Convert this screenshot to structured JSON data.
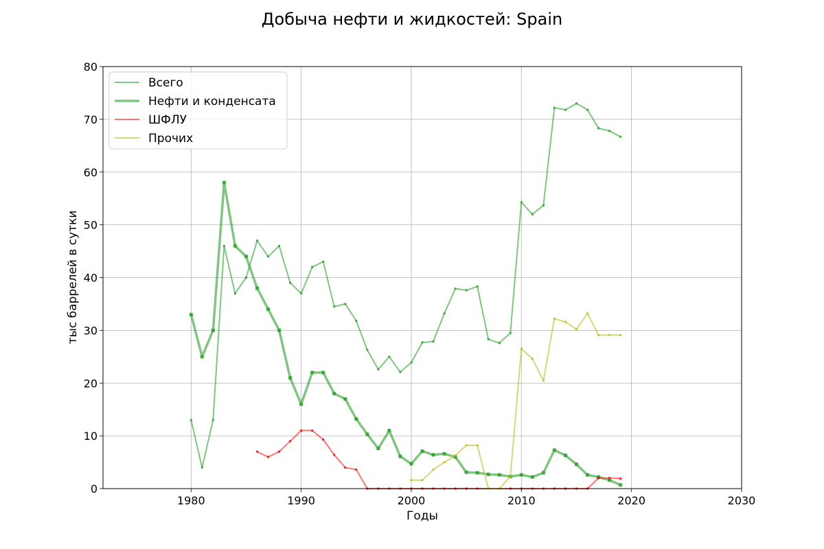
{
  "chart_data": {
    "type": "line",
    "title": "Добыча нефти и жидкостей: Spain",
    "xlabel": "Годы",
    "ylabel": "тыс баррелей в сутки",
    "xlim": [
      1972,
      2030
    ],
    "ylim": [
      0,
      80
    ],
    "xticks": [
      1980,
      1990,
      2000,
      2010,
      2020,
      2030
    ],
    "yticks": [
      0,
      10,
      20,
      30,
      40,
      50,
      60,
      70,
      80
    ],
    "grid": true,
    "legend_position": "top-left",
    "series": [
      {
        "name": "Всего",
        "color": "#2ca02c",
        "x": [
          1980,
          1981,
          1982,
          1983,
          1984,
          1985,
          1986,
          1987,
          1988,
          1989,
          1990,
          1991,
          1992,
          1993,
          1994,
          1995,
          1996,
          1997,
          1998,
          1999,
          2000,
          2001,
          2002,
          2003,
          2004,
          2005,
          2006,
          2007,
          2008,
          2009,
          2010,
          2011,
          2012,
          2013,
          2014,
          2015,
          2016,
          2017,
          2018,
          2019
        ],
        "y": [
          13,
          4,
          13,
          46,
          37,
          40,
          47,
          44,
          46,
          39,
          37,
          42,
          43,
          34.5,
          35,
          31.8,
          26.3,
          22.6,
          25,
          22.1,
          23.9,
          27.7,
          27.9,
          33.2,
          37.9,
          37.6,
          38.3,
          28.3,
          27.6,
          29.5,
          54.3,
          52,
          53.7,
          72.2,
          71.8,
          73,
          71.8,
          68.3,
          67.8,
          66.7
        ]
      },
      {
        "name": "Нефти и конденсата",
        "color": "#2ca02c",
        "x": [
          1980,
          1981,
          1982,
          1983,
          1984,
          1985,
          1986,
          1987,
          1988,
          1989,
          1990,
          1991,
          1992,
          1993,
          1994,
          1995,
          1996,
          1997,
          1998,
          1999,
          2000,
          2001,
          2002,
          2003,
          2004,
          2005,
          2006,
          2007,
          2008,
          2009,
          2010,
          2011,
          2012,
          2013,
          2014,
          2015,
          2016,
          2017,
          2018,
          2019
        ],
        "y": [
          33,
          25,
          30,
          58,
          46,
          44,
          38,
          34,
          30,
          21,
          16,
          22,
          22,
          18,
          17,
          13.2,
          10.3,
          7.6,
          11,
          6.1,
          4.7,
          7.1,
          6.4,
          6.6,
          6,
          3.1,
          3,
          2.7,
          2.6,
          2.3,
          2.6,
          2.2,
          3,
          7.3,
          6.3,
          4.6,
          2.6,
          2.2,
          1.6,
          0.7
        ]
      },
      {
        "name": "ШФЛУ",
        "color": "#ff0000",
        "x": [
          1986,
          1987,
          1988,
          1989,
          1990,
          1991,
          1992,
          1993,
          1994,
          1995,
          1996,
          1997,
          1998,
          1999,
          2000,
          2001,
          2002,
          2003,
          2004,
          2005,
          2006,
          2007,
          2008,
          2009,
          2010,
          2011,
          2012,
          2013,
          2014,
          2015,
          2016,
          2017,
          2018,
          2019
        ],
        "y": [
          7,
          6,
          7,
          9,
          11,
          11,
          9.3,
          6.4,
          4,
          3.6,
          0,
          0,
          0,
          0,
          0,
          0,
          0,
          0,
          0,
          0,
          0,
          0,
          0,
          0,
          0,
          0,
          0,
          0,
          0,
          0,
          0,
          2,
          2,
          1.9
        ]
      },
      {
        "name": "Прочих",
        "color": "#bcbd22",
        "x": [
          2000,
          2001,
          2002,
          2003,
          2004,
          2005,
          2006,
          2007,
          2008,
          2009,
          2010,
          2011,
          2012,
          2013,
          2014,
          2015,
          2016,
          2017,
          2018,
          2019
        ],
        "y": [
          1.6,
          1.6,
          3.6,
          5,
          6.3,
          8.2,
          8.2,
          0,
          0,
          2.3,
          26.5,
          24.6,
          20.5,
          32.2,
          31.6,
          30.2,
          33.2,
          29.1,
          29.1,
          29.1
        ]
      }
    ]
  }
}
